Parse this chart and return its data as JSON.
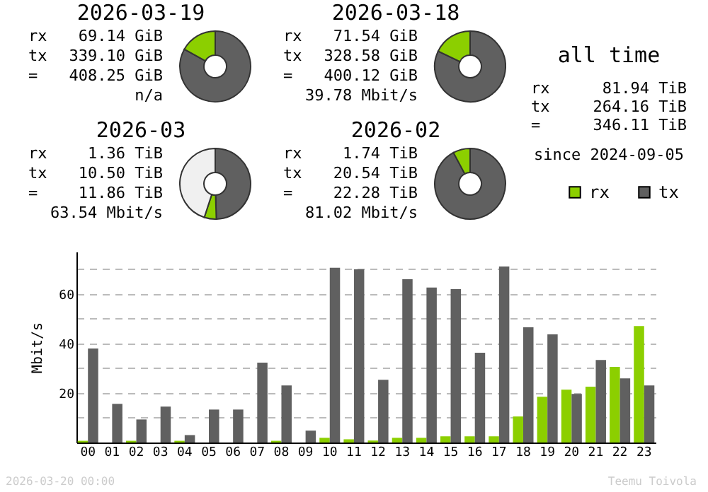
{
  "chart_data": [
    {
      "type": "donut",
      "title": "2026-03-19",
      "categories": [
        null,
        null
      ],
      "values": [
        83.1,
        16.9
      ],
      "colors": [
        "#606060",
        "#8ccf00"
      ],
      "annotations": [
        "rx 69.14 GiB",
        "tx 339.10 GiB",
        "= 408.25 GiB",
        "n/a"
      ]
    },
    {
      "type": "donut",
      "title": "2026-03-18",
      "categories": [
        null,
        null
      ],
      "values": [
        82.1,
        17.9
      ],
      "colors": [
        "#606060",
        "#8ccf00"
      ],
      "annotations": [
        "rx 71.54 GiB",
        "tx 328.58 GiB",
        "= 400.12 GiB",
        "39.78 Mbit/s"
      ]
    },
    {
      "type": "donut",
      "title": "2026-03",
      "categories": [
        null,
        null,
        null
      ],
      "values": [
        49.5,
        5.5,
        45
      ],
      "colors": [
        "#606060",
        "#8ccf00",
        "#f0f0f0"
      ],
      "annotations": [
        "rx 1.36 TiB",
        "tx 10.50 TiB",
        "= 11.86 TiB",
        "63.54 Mbit/s"
      ]
    },
    {
      "type": "donut",
      "title": "2026-02",
      "categories": [
        null,
        null
      ],
      "values": [
        92.2,
        7.8
      ],
      "colors": [
        "#606060",
        "#8ccf00"
      ],
      "annotations": [
        "rx 1.74 TiB",
        "tx 20.54 TiB",
        "= 22.28 TiB",
        "81.02 Mbit/s"
      ]
    },
    {
      "type": "other",
      "title": "all time",
      "annotations": [
        "rx 81.94 TiB",
        "tx 264.16 TiB",
        "= 346.11 TiB",
        "since 2024-09-05"
      ]
    },
    {
      "type": "bar",
      "ylabel": "Mbit/s",
      "categories": [
        "00",
        "01",
        "02",
        "03",
        "04",
        "05",
        "06",
        "07",
        "08",
        "09",
        "10",
        "11",
        "12",
        "13",
        "14",
        "15",
        "16",
        "17",
        "18",
        "19",
        "20",
        "21",
        "22",
        "23"
      ],
      "series": [
        {
          "name": "rx",
          "color": "#8ccf00",
          "values": [
            0.7,
            0,
            0.7,
            0,
            0.7,
            0,
            0,
            0,
            0.7,
            0,
            1.9,
            1.3,
            0.8,
            1.9,
            1.9,
            2.5,
            2.5,
            2.5,
            10.5,
            18.5,
            21.3,
            22.5,
            30.5,
            47.0
          ]
        },
        {
          "name": "tx",
          "color": "#606060",
          "values": [
            37.9,
            15.6,
            9.3,
            14.5,
            3.0,
            13.3,
            13.3,
            32.2,
            23.0,
            4.8,
            70.5,
            69.9,
            25.3,
            65.9,
            62.5,
            61.9,
            36.2,
            71.0,
            46.5,
            43.6,
            19.6,
            33.3,
            25.9,
            23.0
          ]
        }
      ],
      "ylim": [
        0,
        77
      ],
      "yticks": [
        {
          "value": 10,
          "label": null
        },
        20,
        {
          "value": 30,
          "label": null
        },
        40,
        {
          "value": 50,
          "label": null
        },
        60,
        {
          "value": 70,
          "label": null
        }
      ],
      "grid": "y",
      "legend": "top right",
      "annotations": [
        "2026-03-20 00:00",
        "Teemu Toivola"
      ]
    }
  ]
}
